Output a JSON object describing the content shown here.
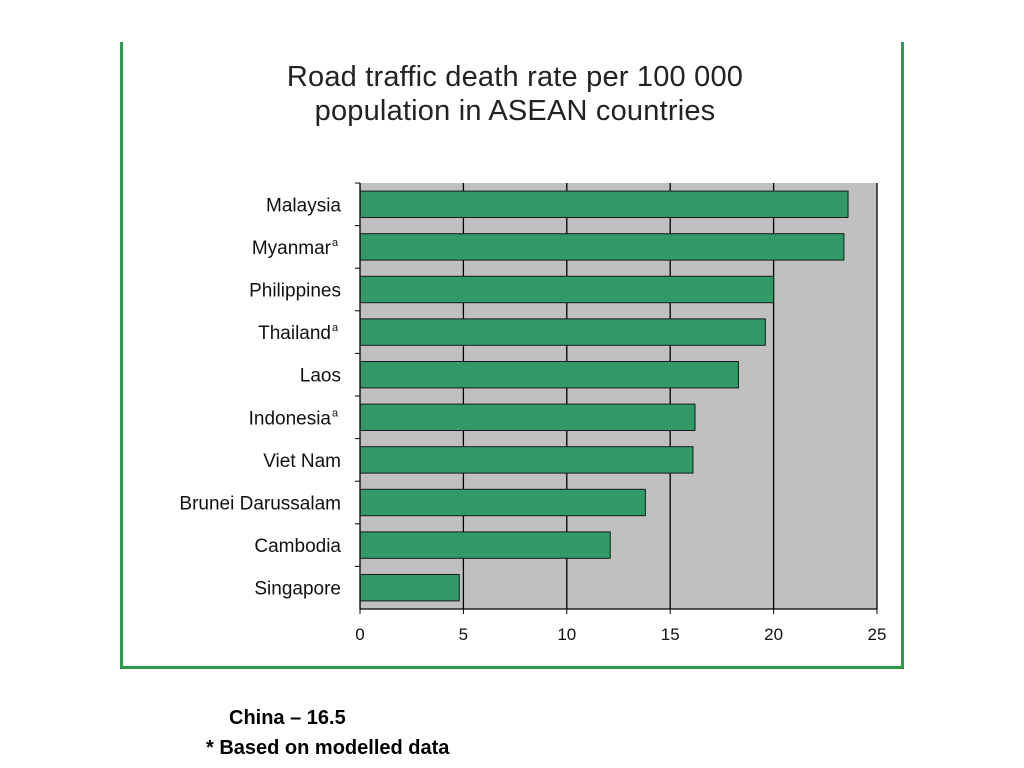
{
  "chart_data": {
    "type": "bar",
    "orientation": "horizontal",
    "title": "Road traffic death rate per 100 000 population in ASEAN countries",
    "title_lines": [
      "Road traffic death rate per 100 000",
      "population in ASEAN countries"
    ],
    "categories": [
      "Malaysia",
      "Myanmar",
      "Philippines",
      "Thailand",
      "Laos",
      "Indonesia",
      "Viet Nam",
      "Brunei Darussalam",
      "Cambodia",
      "Singapore"
    ],
    "category_superscripts": [
      "",
      "a",
      "",
      "a",
      "",
      "a",
      "",
      "",
      "",
      ""
    ],
    "values": [
      23.6,
      23.4,
      20.0,
      19.6,
      18.3,
      16.2,
      16.1,
      13.8,
      12.1,
      4.8
    ],
    "xlabel": "",
    "ylabel": "",
    "xlim": [
      0,
      25
    ],
    "xticks": [
      0,
      5,
      10,
      15,
      20,
      25
    ],
    "grid": "vertical",
    "legend": "none",
    "colors": {
      "bar": "#339966",
      "bar_edge": "#1a1a1a",
      "plot_background": "#c0c0c0",
      "gridline": "#000000",
      "frame": "#2e9a4e"
    }
  },
  "notes": {
    "china": "China – 16.5",
    "modelled": "* Based on modelled data"
  }
}
